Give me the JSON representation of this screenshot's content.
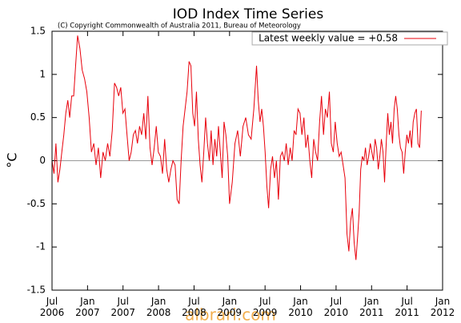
{
  "chart_data": {
    "type": "line",
    "title": "IOD Index Time Series",
    "subtitle": "(C) Copyright Commonwealth of Australia 2011, Bureau of Meteorology",
    "y_label": "°C",
    "watermark": "albrari.com",
    "legend": "upper right",
    "zero_line": true,
    "xlim": [
      2006.5,
      2012.0
    ],
    "xticks": [
      {
        "value": 2006.5,
        "label": "Jul 2006"
      },
      {
        "value": 2007.0,
        "label": "Jan 2007"
      },
      {
        "value": 2007.5,
        "label": "Jul 2007"
      },
      {
        "value": 2008.0,
        "label": "Jan 2008"
      },
      {
        "value": 2008.5,
        "label": "Jul 2008"
      },
      {
        "value": 2009.0,
        "label": "Jan 2009"
      },
      {
        "value": 2009.5,
        "label": "Jul 2009"
      },
      {
        "value": 2010.0,
        "label": "Jan 2010"
      },
      {
        "value": 2010.5,
        "label": "Jul 2010"
      },
      {
        "value": 2011.0,
        "label": "Jan 2011"
      },
      {
        "value": 2011.5,
        "label": "Jul 2011"
      },
      {
        "value": 2012.0,
        "label": "Jan 2012"
      }
    ],
    "ylim": [
      -1.5,
      1.5
    ],
    "yticks": [
      1.5,
      1,
      0.5,
      0,
      -0.5,
      -1,
      -1.5
    ],
    "x": [
      2006.5,
      2006.528,
      2006.555,
      2006.583,
      2006.611,
      2006.638,
      2006.666,
      2006.694,
      2006.722,
      2006.749,
      2006.777,
      2006.805,
      2006.832,
      2006.86,
      2006.893,
      2006.925,
      2006.958,
      2006.99,
      2007.023,
      2007.055,
      2007.088,
      2007.12,
      2007.153,
      2007.185,
      2007.218,
      2007.25,
      2007.283,
      2007.315,
      2007.348,
      2007.38,
      2007.409,
      2007.439,
      2007.468,
      2007.498,
      2007.527,
      2007.556,
      2007.586,
      2007.615,
      2007.645,
      2007.674,
      2007.703,
      2007.733,
      2007.762,
      2007.792,
      2007.821,
      2007.85,
      2007.88,
      2007.909,
      2007.939,
      2007.968,
      2007.997,
      2008.027,
      2008.056,
      2008.086,
      2008.115,
      2008.144,
      2008.174,
      2008.203,
      2008.233,
      2008.262,
      2008.29,
      2008.318,
      2008.346,
      2008.374,
      2008.402,
      2008.43,
      2008.456,
      2008.482,
      2008.508,
      2008.534,
      2008.56,
      2008.585,
      2008.611,
      2008.637,
      2008.663,
      2008.689,
      2008.715,
      2008.741,
      2008.767,
      2008.793,
      2008.819,
      2008.844,
      2008.87,
      2008.896,
      2008.922,
      2008.948,
      2008.974,
      2009.0,
      2009.038,
      2009.076,
      2009.114,
      2009.152,
      2009.19,
      2009.228,
      2009.266,
      2009.304,
      2009.342,
      2009.38,
      2009.404,
      2009.429,
      2009.453,
      2009.477,
      2009.501,
      2009.526,
      2009.55,
      2009.578,
      2009.605,
      2009.633,
      2009.66,
      2009.688,
      2009.716,
      2009.743,
      2009.771,
      2009.798,
      2009.826,
      2009.854,
      2009.881,
      2009.909,
      2009.936,
      2009.964,
      2009.992,
      2010.019,
      2010.047,
      2010.074,
      2010.102,
      2010.13,
      2010.157,
      2010.185,
      2010.212,
      2010.24,
      2010.268,
      2010.295,
      2010.323,
      2010.35,
      2010.378,
      2010.406,
      2010.433,
      2010.461,
      2010.488,
      2010.516,
      2010.544,
      2010.571,
      2010.599,
      2010.626,
      2010.654,
      2010.68,
      2010.705,
      2010.73,
      2010.755,
      2010.78,
      2010.802,
      2010.825,
      2010.847,
      2010.87,
      2010.892,
      2010.914,
      2010.937,
      2010.959,
      2010.982,
      2011.004,
      2011.026,
      2011.049,
      2011.071,
      2011.094,
      2011.116,
      2011.138,
      2011.161,
      2011.183,
      2011.206,
      2011.228,
      2011.25,
      2011.273,
      2011.295,
      2011.318,
      2011.34,
      2011.362,
      2011.385,
      2011.407,
      2011.43,
      2011.452,
      2011.474,
      2011.497,
      2011.519,
      2011.542,
      2011.564,
      2011.586,
      2011.609,
      2011.631,
      2011.654,
      2011.676,
      2011.7
    ],
    "series": [
      {
        "name": "Latest weekly value = +0.58",
        "color": "#e8000b",
        "values": [
          0.0,
          -0.15,
          0.2,
          -0.25,
          -0.1,
          0.1,
          0.3,
          0.55,
          0.7,
          0.5,
          0.75,
          0.75,
          1.1,
          1.45,
          1.3,
          1.05,
          0.95,
          0.8,
          0.5,
          0.1,
          0.2,
          -0.05,
          0.15,
          -0.2,
          0.1,
          0.0,
          0.2,
          0.05,
          0.35,
          0.9,
          0.85,
          0.75,
          0.85,
          0.55,
          0.6,
          0.3,
          0.0,
          0.1,
          0.3,
          0.35,
          0.2,
          0.4,
          0.3,
          0.55,
          0.25,
          0.75,
          0.15,
          -0.05,
          0.15,
          0.4,
          0.1,
          0.05,
          -0.15,
          0.25,
          -0.1,
          -0.25,
          -0.1,
          0.0,
          -0.05,
          -0.45,
          -0.5,
          0.0,
          0.4,
          0.6,
          0.8,
          1.15,
          1.1,
          0.55,
          0.4,
          0.8,
          0.25,
          -0.05,
          -0.25,
          0.1,
          0.5,
          0.2,
          0.0,
          0.35,
          -0.05,
          0.25,
          0.05,
          0.4,
          0.1,
          -0.2,
          0.45,
          0.3,
          0.05,
          -0.5,
          -0.25,
          0.2,
          0.35,
          0.05,
          0.4,
          0.5,
          0.3,
          0.25,
          0.6,
          1.1,
          0.7,
          0.45,
          0.6,
          0.4,
          0.1,
          -0.3,
          -0.55,
          -0.1,
          0.05,
          -0.2,
          0.0,
          -0.45,
          0.05,
          0.1,
          0.0,
          0.2,
          -0.05,
          0.15,
          0.0,
          0.35,
          0.3,
          0.6,
          0.55,
          0.3,
          0.5,
          0.15,
          0.3,
          0.0,
          -0.2,
          0.25,
          0.1,
          0.0,
          0.45,
          0.75,
          0.3,
          0.6,
          0.5,
          0.8,
          0.2,
          0.1,
          0.45,
          0.2,
          0.05,
          0.1,
          -0.05,
          -0.2,
          -0.85,
          -1.05,
          -0.7,
          -0.55,
          -0.95,
          -1.15,
          -0.9,
          -0.6,
          -0.1,
          0.05,
          0.0,
          0.15,
          -0.05,
          0.05,
          0.2,
          0.1,
          0.0,
          0.25,
          0.15,
          -0.1,
          0.05,
          0.25,
          0.1,
          -0.25,
          0.2,
          0.55,
          0.3,
          0.45,
          0.2,
          0.6,
          0.75,
          0.6,
          0.3,
          0.15,
          0.1,
          -0.15,
          0.1,
          0.3,
          0.2,
          0.35,
          0.15,
          0.45,
          0.55,
          0.6,
          0.2,
          0.15,
          0.58
        ]
      }
    ]
  }
}
